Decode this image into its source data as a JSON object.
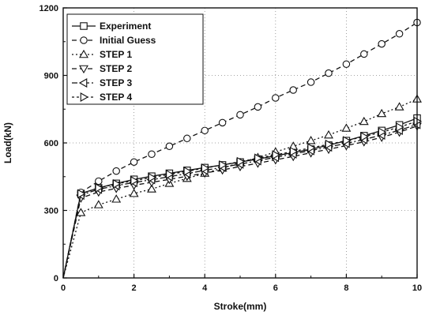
{
  "chart_data": {
    "type": "line",
    "title": "",
    "xlabel": "Stroke(mm)",
    "ylabel": "Load(kN)",
    "xlim": [
      0,
      10
    ],
    "ylim": [
      0,
      1200
    ],
    "xticks": [
      0,
      2,
      4,
      6,
      8,
      10
    ],
    "yticks": [
      0,
      300,
      600,
      900,
      1200
    ],
    "grid": "dotted",
    "legend_position": "top-left",
    "series": [
      {
        "name": "Experiment",
        "marker": "square",
        "dash": "solid",
        "x": [
          0,
          0.5,
          1,
          1.5,
          2,
          2.5,
          3,
          3.5,
          4,
          4.5,
          5,
          5.5,
          6,
          6.5,
          7,
          7.5,
          8,
          8.5,
          9,
          9.5,
          10
        ],
        "y": [
          0,
          375,
          400,
          420,
          438,
          452,
          465,
          478,
          490,
          502,
          515,
          528,
          543,
          557,
          572,
          590,
          610,
          632,
          655,
          680,
          710
        ]
      },
      {
        "name": "Initial Guess",
        "marker": "circle",
        "dash": "dashed",
        "x": [
          0,
          0.5,
          1,
          1.5,
          2,
          2.5,
          3,
          3.5,
          4,
          4.5,
          5,
          5.5,
          6,
          6.5,
          7,
          7.5,
          8,
          8.5,
          9,
          9.5,
          10
        ],
        "y": [
          0,
          380,
          430,
          475,
          515,
          550,
          585,
          620,
          655,
          690,
          725,
          760,
          800,
          835,
          870,
          910,
          950,
          995,
          1040,
          1085,
          1135
        ]
      },
      {
        "name": "STEP 1",
        "marker": "triangle-up",
        "dash": "dotted",
        "x": [
          0,
          0.5,
          1,
          1.5,
          2,
          2.5,
          3,
          3.5,
          4,
          4.5,
          5,
          5.5,
          6,
          6.5,
          7,
          7.5,
          8,
          8.5,
          9,
          9.5,
          10
        ],
        "y": [
          0,
          290,
          325,
          350,
          375,
          395,
          420,
          442,
          465,
          488,
          512,
          535,
          560,
          585,
          610,
          635,
          665,
          695,
          730,
          760,
          795
        ]
      },
      {
        "name": "STEP 2",
        "marker": "triangle-down",
        "dash": "dashed",
        "x": [
          0,
          0.5,
          1,
          1.5,
          2,
          2.5,
          3,
          3.5,
          4,
          4.5,
          5,
          5.5,
          6,
          6.5,
          7,
          7.5,
          8,
          8.5,
          9,
          9.5,
          10
        ],
        "y": [
          0,
          355,
          382,
          398,
          412,
          425,
          438,
          452,
          466,
          480,
          495,
          510,
          525,
          540,
          556,
          572,
          588,
          605,
          625,
          648,
          675
        ]
      },
      {
        "name": "STEP 3",
        "marker": "triangle-left",
        "dash": "dashdot",
        "x": [
          0,
          0.5,
          1,
          1.5,
          2,
          2.5,
          3,
          3.5,
          4,
          4.5,
          5,
          5.5,
          6,
          6.5,
          7,
          7.5,
          8,
          8.5,
          9,
          9.5,
          10
        ],
        "y": [
          0,
          368,
          394,
          410,
          424,
          437,
          450,
          464,
          478,
          492,
          506,
          521,
          536,
          551,
          566,
          582,
          598,
          615,
          635,
          656,
          682
        ]
      },
      {
        "name": "STEP 4",
        "marker": "triangle-right",
        "dash": "shortdash",
        "x": [
          0,
          0.5,
          1,
          1.5,
          2,
          2.5,
          3,
          3.5,
          4,
          4.5,
          5,
          5.5,
          6,
          6.5,
          7,
          7.5,
          8,
          8.5,
          9,
          9.5,
          10
        ],
        "y": [
          0,
          374,
          400,
          418,
          432,
          446,
          460,
          474,
          488,
          502,
          517,
          532,
          547,
          562,
          578,
          594,
          610,
          628,
          648,
          670,
          696
        ]
      }
    ]
  }
}
